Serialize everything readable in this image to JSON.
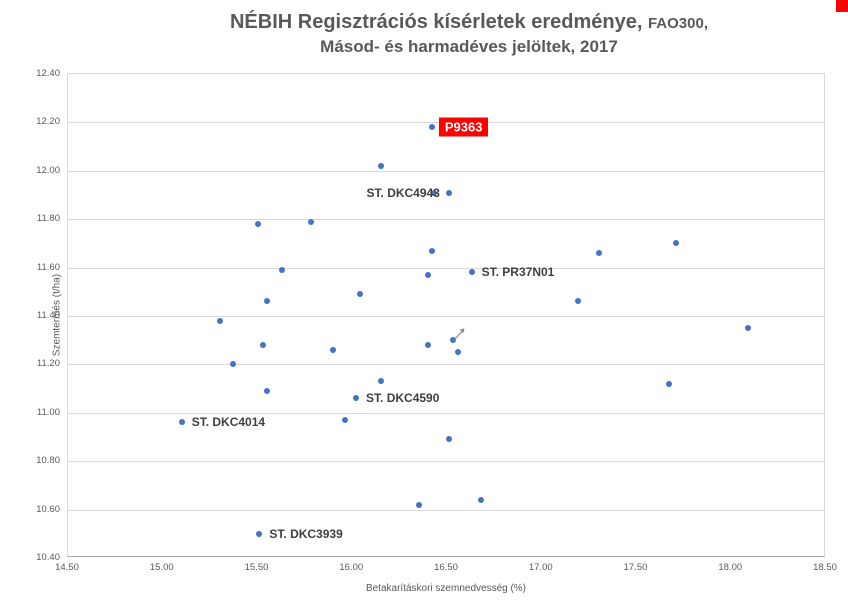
{
  "window": {
    "corner_mark_color": "#ff0000"
  },
  "title": {
    "line1_main": "NÉBIH Regisztrációs kísérletek eredménye,",
    "line1_suffix": "FAO300,",
    "line2": "Másod- és harmadéves jelöltek, 2017"
  },
  "chart_data": {
    "type": "scatter",
    "title": "NÉBIH Regisztrációs kísérletek eredménye, FAO300, Másod- és harmadéves jelöltek, 2017",
    "xlabel": "Betakarításkori szemnedvesség (%)",
    "ylabel": "Szemtermés (t/ha)",
    "xlim": [
      14.5,
      18.5
    ],
    "ylim": [
      10.4,
      12.4
    ],
    "x_ticks": [
      "14.50",
      "15.00",
      "15.50",
      "16.00",
      "16.50",
      "17.00",
      "17.50",
      "18.00",
      "18.50"
    ],
    "y_ticks": [
      "12.40",
      "12.20",
      "12.00",
      "11.80",
      "11.60",
      "11.40",
      "11.20",
      "11.00",
      "10.80",
      "10.60",
      "10.40"
    ],
    "grid": "horizontal",
    "legend": "none",
    "marker_color": "#4472c4",
    "highlight_color": "#ff0000",
    "points": [
      {
        "x": 16.42,
        "y": 12.18,
        "label": "P9363",
        "side": "right",
        "highlight": true
      },
      {
        "x": 16.15,
        "y": 12.02
      },
      {
        "x": 16.43,
        "y": 11.91
      },
      {
        "x": 16.51,
        "y": 11.91,
        "label": "ST. DKC4943",
        "side": "left"
      },
      {
        "x": 15.5,
        "y": 11.78
      },
      {
        "x": 15.78,
        "y": 11.79
      },
      {
        "x": 16.42,
        "y": 11.67
      },
      {
        "x": 17.3,
        "y": 11.66
      },
      {
        "x": 17.71,
        "y": 11.7
      },
      {
        "x": 15.63,
        "y": 11.59
      },
      {
        "x": 16.4,
        "y": 11.57
      },
      {
        "x": 16.63,
        "y": 11.58,
        "label": "ST. PR37N01",
        "side": "right"
      },
      {
        "x": 16.04,
        "y": 11.49
      },
      {
        "x": 17.19,
        "y": 11.46
      },
      {
        "x": 15.55,
        "y": 11.46
      },
      {
        "x": 15.3,
        "y": 11.38
      },
      {
        "x": 18.09,
        "y": 11.35
      },
      {
        "x": 15.53,
        "y": 11.28
      },
      {
        "x": 16.4,
        "y": 11.28
      },
      {
        "x": 16.53,
        "y": 11.3,
        "cursor": true
      },
      {
        "x": 16.56,
        "y": 11.25
      },
      {
        "x": 15.9,
        "y": 11.26
      },
      {
        "x": 15.37,
        "y": 11.2
      },
      {
        "x": 16.15,
        "y": 11.13
      },
      {
        "x": 17.67,
        "y": 11.12
      },
      {
        "x": 15.55,
        "y": 11.09
      },
      {
        "x": 16.02,
        "y": 11.06,
        "label": "ST. DKC4590",
        "side": "right"
      },
      {
        "x": 15.96,
        "y": 10.97
      },
      {
        "x": 15.1,
        "y": 10.96,
        "label": "ST. DKC4014",
        "side": "right"
      },
      {
        "x": 16.51,
        "y": 10.89
      },
      {
        "x": 16.35,
        "y": 10.62
      },
      {
        "x": 16.68,
        "y": 10.64
      },
      {
        "x": 15.51,
        "y": 10.5,
        "label": "ST. DKC3939",
        "side": "right"
      }
    ]
  }
}
